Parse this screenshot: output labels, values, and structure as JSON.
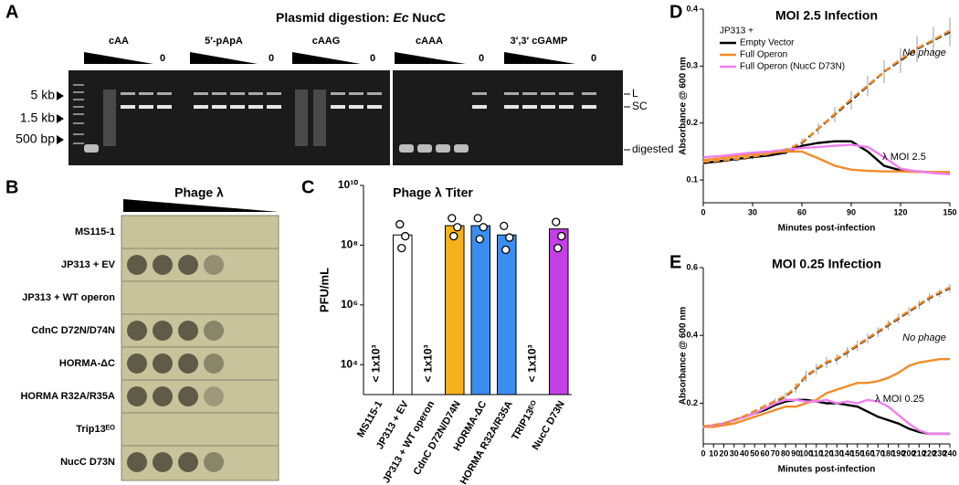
{
  "panel_a": {
    "label": "A",
    "title": {
      "prefix": "Plasmid digestion:",
      "italic": "Ec",
      "suffix": "NucC"
    },
    "groups": [
      {
        "name": "cAA",
        "zero": "0"
      },
      {
        "name": "5′-pApA",
        "zero": "0"
      },
      {
        "name": "cAAG",
        "zero": "0"
      },
      {
        "name": "cAAA",
        "zero": "0"
      },
      {
        "name": "3′,3′ cGAMP",
        "zero": "0"
      }
    ],
    "markers": [
      "5 kb",
      "1.5 kb",
      "500 bp"
    ],
    "band_labels": [
      "L",
      "SC",
      "digested"
    ]
  },
  "panel_b": {
    "label": "B",
    "title": "Phage λ",
    "rows": [
      "MS115-1",
      "JP313 + EV",
      "JP313 + WT operon",
      "CdnC D72N/D74N",
      "HORMA-ΔC",
      "HORMA R32A/R35A",
      "Trip13ᴱᴼ",
      "NucC D73N"
    ]
  },
  "chart_data": [
    {
      "type": "bar",
      "panel_label": "C",
      "title": "Phage λ Titer",
      "y_label": "PFU/mL",
      "categories": [
        "MS115-1",
        "JP313 + EV",
        "JP313 + WT operon",
        "CdnC D72N/D74N",
        "HORMA-ΔC",
        "HORMA R32A/R35A",
        "TRIP13ᴱᴼ",
        "NucC D73N"
      ],
      "values": [
        1000,
        220000000,
        1000,
        450000000,
        450000000,
        220000000,
        1000,
        350000000
      ],
      "value_labels": [
        "< 1x10³",
        null,
        "< 1x10³",
        null,
        null,
        null,
        "< 1x10³",
        null
      ],
      "colors": [
        "#ffffff",
        "#ffffff",
        "#ffffff",
        "#f6b21b",
        "#3a8ef0",
        "#3a8ef0",
        "#ffffff",
        "#c43fe6"
      ],
      "replicates": [
        [],
        [
          500000000,
          200000000,
          80000000
        ],
        [],
        [
          800000000,
          400000000,
          200000000
        ],
        [
          800000000,
          400000000,
          160000000
        ],
        [
          440000000,
          180000000,
          70000000
        ],
        [],
        [
          600000000,
          200000000,
          80000000
        ]
      ],
      "log_scale": true,
      "ylim": [
        1000,
        10000000000
      ],
      "yticks": [
        {
          "value": 10000,
          "label": "10⁴"
        },
        {
          "value": 1000000,
          "label": "10⁶"
        },
        {
          "value": 100000000,
          "label": "10⁸"
        },
        {
          "value": 10000000000,
          "label": "10¹⁰"
        }
      ]
    },
    {
      "type": "line",
      "panel_label": "D",
      "title": "MOI 2.5 Infection",
      "x_label": "Minutes post-infection",
      "y_label": "Absorbance @ 600 nm",
      "legend_title": "JP313 +",
      "x": [
        0,
        10,
        20,
        30,
        40,
        50,
        60,
        70,
        80,
        90,
        100,
        110,
        120,
        130,
        140,
        150
      ],
      "series": [
        {
          "values": [
            0.13,
            0.133,
            0.136,
            0.14,
            0.145,
            0.15,
            0.165,
            0.19,
            0.215,
            0.24,
            0.265,
            0.29,
            0.31,
            0.33,
            0.345,
            0.36
          ],
          "errors": [
            0.003,
            0.003,
            0.004,
            0.004,
            0.005,
            0.006,
            0.008,
            0.01,
            0.013,
            0.016,
            0.018,
            0.02,
            0.022,
            0.023,
            0.024,
            0.025
          ],
          "color": "#000000",
          "dashed": true
        },
        {
          "name": "Empty Vector",
          "color": "#000000",
          "values": [
            0.13,
            0.133,
            0.137,
            0.14,
            0.143,
            0.148,
            0.16,
            0.165,
            0.168,
            0.168,
            0.15,
            0.125,
            0.117,
            0.115,
            0.113,
            0.113
          ]
        },
        {
          "name": "Full Operon",
          "color": "#f28c28",
          "values": [
            0.135,
            0.138,
            0.142,
            0.145,
            0.148,
            0.15,
            0.15,
            0.138,
            0.125,
            0.118,
            0.116,
            0.115,
            0.115,
            0.114,
            0.114,
            0.114
          ]
        },
        {
          "name": "Full Operon (NucC D73N)",
          "color": "#f07ef0",
          "values": [
            0.14,
            0.142,
            0.145,
            0.148,
            0.15,
            0.153,
            0.156,
            0.158,
            0.16,
            0.162,
            0.158,
            0.14,
            0.12,
            0.115,
            0.112,
            0.11
          ]
        },
        {
          "values": [
            0.132,
            0.134,
            0.137,
            0.141,
            0.146,
            0.152,
            0.166,
            0.19,
            0.216,
            0.242,
            0.266,
            0.29,
            0.312,
            0.331,
            0.346,
            0.362
          ],
          "color": "#f28c28",
          "dashed": true
        }
      ],
      "annotations": [
        "No phage",
        "λ MOI 2.5"
      ],
      "xlim": [
        0,
        150
      ],
      "ylim": [
        0.06,
        0.4
      ],
      "xticks": [
        0,
        30,
        60,
        90,
        120,
        150
      ],
      "yticks": [
        0.1,
        0.2,
        0.3,
        0.4
      ]
    },
    {
      "type": "line",
      "panel_label": "E",
      "title": "MOI 0.25 Infection",
      "x_label": "Minutes post-infection",
      "y_label": "Absorbance @ 600 nm",
      "x": [
        0,
        10,
        20,
        30,
        40,
        50,
        60,
        70,
        80,
        90,
        100,
        110,
        120,
        130,
        140,
        150,
        160,
        170,
        180,
        190,
        200,
        210,
        220,
        230,
        240
      ],
      "series": [
        {
          "values": [
            0.13,
            0.135,
            0.14,
            0.15,
            0.16,
            0.175,
            0.19,
            0.205,
            0.22,
            0.245,
            0.28,
            0.3,
            0.32,
            0.33,
            0.35,
            0.37,
            0.39,
            0.41,
            0.43,
            0.45,
            0.47,
            0.49,
            0.51,
            0.525,
            0.54
          ],
          "errors": [
            0.003,
            0.003,
            0.004,
            0.004,
            0.005,
            0.006,
            0.008,
            0.01,
            0.012,
            0.014,
            0.016,
            0.016,
            0.016,
            0.015,
            0.015,
            0.015,
            0.015,
            0.014,
            0.014,
            0.014,
            0.013,
            0.013,
            0.013,
            0.012,
            0.012
          ],
          "color": "#000000",
          "dashed": true
        },
        {
          "color": "#000000",
          "values": [
            0.13,
            0.135,
            0.14,
            0.15,
            0.16,
            0.17,
            0.18,
            0.195,
            0.205,
            0.21,
            0.21,
            0.205,
            0.2,
            0.2,
            0.195,
            0.19,
            0.175,
            0.16,
            0.15,
            0.14,
            0.125,
            0.115,
            0.11,
            0.11,
            0.11
          ]
        },
        {
          "color": "#f28c28",
          "values": [
            0.13,
            0.13,
            0.135,
            0.14,
            0.15,
            0.16,
            0.17,
            0.18,
            0.19,
            0.19,
            0.2,
            0.21,
            0.23,
            0.24,
            0.25,
            0.26,
            0.26,
            0.265,
            0.275,
            0.29,
            0.31,
            0.32,
            0.325,
            0.33,
            0.33
          ]
        },
        {
          "color": "#f07ef0",
          "values": [
            0.13,
            0.135,
            0.14,
            0.15,
            0.16,
            0.17,
            0.185,
            0.2,
            0.21,
            0.21,
            0.205,
            0.205,
            0.21,
            0.2,
            0.205,
            0.2,
            0.21,
            0.205,
            0.19,
            0.165,
            0.14,
            0.12,
            0.11,
            0.11,
            0.11
          ]
        },
        {
          "values": [
            0.132,
            0.136,
            0.141,
            0.151,
            0.162,
            0.177,
            0.192,
            0.207,
            0.222,
            0.247,
            0.281,
            0.302,
            0.322,
            0.332,
            0.352,
            0.372,
            0.392,
            0.412,
            0.432,
            0.452,
            0.472,
            0.492,
            0.512,
            0.527,
            0.542
          ],
          "color": "#f28c28",
          "dashed": true
        }
      ],
      "annotations": [
        "No phage",
        "λ MOI 0.25"
      ],
      "xlim": [
        0,
        240
      ],
      "ylim": [
        0.08,
        0.6
      ],
      "xticks": [
        0,
        10,
        20,
        30,
        40,
        50,
        60,
        70,
        80,
        90,
        100,
        110,
        120,
        130,
        140,
        150,
        160,
        170,
        180,
        190,
        200,
        210,
        220,
        230,
        240
      ],
      "yticks": [
        0.2,
        0.4,
        0.6
      ]
    }
  ]
}
